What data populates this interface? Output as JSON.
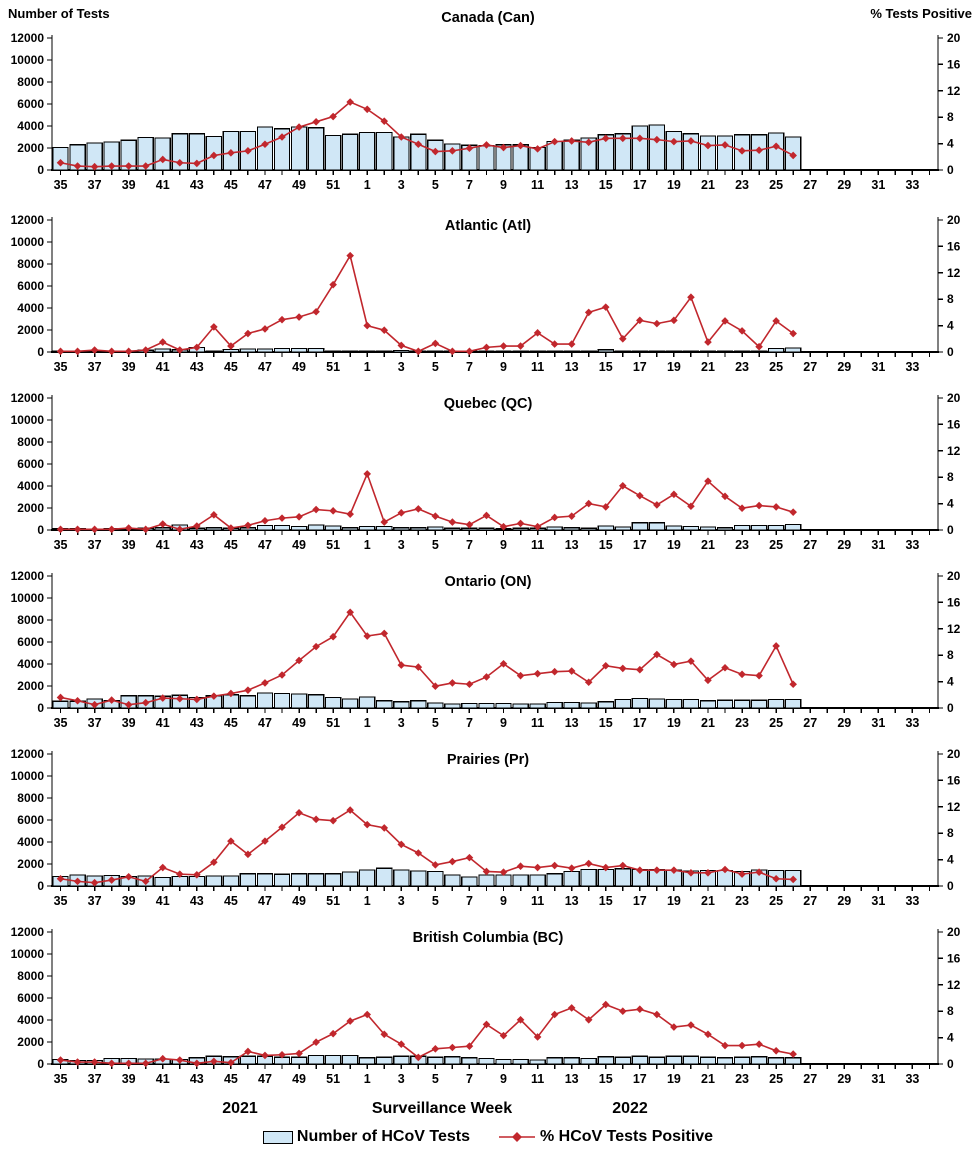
{
  "axes": {
    "left_title": "Number of Tests",
    "right_title": "% Tests Positive",
    "left_ticks": [
      0,
      2000,
      4000,
      6000,
      8000,
      10000,
      12000
    ],
    "right_ticks": [
      0,
      4,
      8,
      12,
      16,
      20
    ],
    "left_max": 12000,
    "right_max": 20
  },
  "x_axis": {
    "title": "Surveillance Week",
    "year_left": "2021",
    "year_right": "2022"
  },
  "legend": {
    "bar_label": "Number of HCoV Tests",
    "line_label": "% HCoV Tests Positive"
  },
  "colors": {
    "bar_fill": "#d0e7f6",
    "bar_stroke": "#000000",
    "line_color": "#c1272d",
    "axis_color": "#000000"
  },
  "chart_data": {
    "type": "bar",
    "note": "Six stacked panels; bars = number of HCoV tests (left axis 0-12000), line = % HCoV tests positive (right axis 0-20). Weeks 35-52 of 2021 then 1-34 of 2022; data plotted through week 26 of 2022.",
    "weeks": [
      "35",
      "36",
      "37",
      "38",
      "39",
      "40",
      "41",
      "42",
      "43",
      "44",
      "45",
      "46",
      "47",
      "48",
      "49",
      "50",
      "51",
      "52",
      "1",
      "2",
      "3",
      "4",
      "5",
      "6",
      "7",
      "8",
      "9",
      "10",
      "11",
      "12",
      "13",
      "14",
      "15",
      "16",
      "17",
      "18",
      "19",
      "20",
      "21",
      "22",
      "23",
      "24",
      "25",
      "26",
      "27",
      "28",
      "29",
      "30",
      "31",
      "32",
      "33",
      "34"
    ],
    "panels": [
      {
        "id": "can",
        "title": "Canada (Can)",
        "bars": [
          2050,
          2300,
          2450,
          2550,
          2700,
          2950,
          2900,
          3300,
          3300,
          3050,
          3500,
          3500,
          3900,
          3750,
          3900,
          3850,
          3150,
          3250,
          3400,
          3400,
          3000,
          3250,
          2700,
          2350,
          2250,
          2200,
          2300,
          2300,
          2050,
          2600,
          2700,
          2900,
          3200,
          3300,
          4000,
          4100,
          3500,
          3300,
          3100,
          3100,
          3200,
          3200,
          3350,
          3000
        ],
        "line": [
          1.1,
          0.6,
          0.5,
          0.6,
          0.6,
          0.6,
          1.6,
          1.1,
          1.0,
          2.2,
          2.6,
          2.9,
          3.9,
          5.0,
          6.5,
          7.3,
          8.1,
          10.3,
          9.2,
          7.4,
          5.0,
          3.9,
          2.8,
          2.9,
          3.3,
          3.8,
          3.4,
          3.7,
          3.2,
          4.3,
          4.4,
          4.2,
          4.8,
          4.8,
          4.8,
          4.6,
          4.3,
          4.4,
          3.7,
          3.8,
          2.9,
          3.0,
          3.6,
          2.2
        ]
      },
      {
        "id": "atl",
        "title": "Atlantic (Atl)",
        "bars": [
          60,
          90,
          110,
          60,
          50,
          160,
          260,
          210,
          420,
          60,
          220,
          260,
          260,
          320,
          320,
          320,
          70,
          60,
          70,
          60,
          130,
          40,
          60,
          40,
          40,
          60,
          60,
          60,
          60,
          80,
          80,
          80,
          210,
          80,
          80,
          80,
          80,
          80,
          80,
          80,
          80,
          60,
          310,
          360
        ],
        "line": [
          0.1,
          0.1,
          0.3,
          0.1,
          0.1,
          0.3,
          1.5,
          0.3,
          0.7,
          3.8,
          0.9,
          2.8,
          3.5,
          4.9,
          5.3,
          6.1,
          10.2,
          14.6,
          4.0,
          3.3,
          1.0,
          0.1,
          1.3,
          0.1,
          0.1,
          0.7,
          0.9,
          0.9,
          2.9,
          1.2,
          1.2,
          6.0,
          6.8,
          2.0,
          4.8,
          4.3,
          4.8,
          8.3,
          1.5,
          4.7,
          3.2,
          0.8,
          4.7,
          2.8
        ]
      },
      {
        "id": "qc",
        "title": "Quebec (QC)",
        "bars": [
          110,
          110,
          100,
          110,
          110,
          160,
          210,
          460,
          160,
          210,
          160,
          210,
          410,
          410,
          310,
          460,
          360,
          210,
          310,
          310,
          210,
          210,
          260,
          160,
          160,
          160,
          110,
          160,
          160,
          260,
          210,
          160,
          360,
          260,
          660,
          660,
          360,
          310,
          260,
          210,
          410,
          410,
          410,
          510
        ],
        "line": [
          0.1,
          0.1,
          0.1,
          0.1,
          0.3,
          0.1,
          0.9,
          0.1,
          0.6,
          2.3,
          0.3,
          0.7,
          1.4,
          1.8,
          2.0,
          3.1,
          2.9,
          2.4,
          8.5,
          1.2,
          2.6,
          3.2,
          2.1,
          1.2,
          0.8,
          2.2,
          0.5,
          1.0,
          0.5,
          1.9,
          2.1,
          4.0,
          3.5,
          6.7,
          5.2,
          3.8,
          5.4,
          3.6,
          7.4,
          5.1,
          3.3,
          3.7,
          3.5,
          2.7
        ]
      },
      {
        "id": "on",
        "title": "Ontario (ON)",
        "bars": [
          620,
          620,
          810,
          660,
          1110,
          1110,
          1060,
          1160,
          960,
          1110,
          1210,
          1110,
          1360,
          1310,
          1260,
          1210,
          960,
          810,
          1010,
          660,
          560,
          660,
          460,
          360,
          410,
          410,
          410,
          360,
          360,
          510,
          510,
          460,
          560,
          760,
          860,
          810,
          760,
          760,
          660,
          710,
          710,
          710,
          760,
          760
        ],
        "line": [
          1.6,
          1.1,
          0.5,
          1.2,
          0.5,
          0.8,
          1.5,
          1.4,
          1.3,
          1.8,
          2.2,
          2.7,
          3.8,
          5.0,
          7.2,
          9.3,
          10.8,
          14.5,
          10.9,
          11.3,
          6.5,
          6.2,
          3.3,
          3.8,
          3.6,
          4.7,
          6.7,
          4.9,
          5.2,
          5.5,
          5.6,
          3.9,
          6.4,
          6.0,
          5.8,
          8.1,
          6.6,
          7.1,
          4.2,
          6.1,
          5.1,
          4.9,
          9.4,
          3.6
        ]
      },
      {
        "id": "pr",
        "title": "Prairies (Pr)",
        "bars": [
          860,
          1010,
          910,
          960,
          860,
          910,
          760,
          860,
          860,
          910,
          910,
          1110,
          1110,
          1060,
          1110,
          1110,
          1110,
          1260,
          1460,
          1610,
          1460,
          1360,
          1310,
          1010,
          810,
          1010,
          1010,
          1010,
          1010,
          1110,
          1310,
          1510,
          1510,
          1560,
          1510,
          1510,
          1460,
          1360,
          1410,
          1410,
          1310,
          1460,
          1410,
          1410
        ],
        "line": [
          1.1,
          0.7,
          0.5,
          0.9,
          1.4,
          0.7,
          2.8,
          1.8,
          1.7,
          3.6,
          6.8,
          4.8,
          6.8,
          8.9,
          11.1,
          10.1,
          9.9,
          11.5,
          9.3,
          8.8,
          6.3,
          5.0,
          3.2,
          3.7,
          4.3,
          2.2,
          2.1,
          3.0,
          2.8,
          3.1,
          2.7,
          3.4,
          2.8,
          3.1,
          2.4,
          2.4,
          2.4,
          2.0,
          2.0,
          2.5,
          1.8,
          2.1,
          1.1,
          1.0
        ]
      },
      {
        "id": "bc",
        "title": "British Columbia (BC)",
        "bars": [
          410,
          310,
          310,
          510,
          510,
          460,
          460,
          410,
          560,
          710,
          660,
          710,
          710,
          610,
          610,
          760,
          760,
          760,
          560,
          610,
          710,
          710,
          610,
          660,
          560,
          510,
          410,
          410,
          360,
          560,
          560,
          510,
          660,
          610,
          710,
          610,
          710,
          710,
          610,
          560,
          610,
          660,
          560,
          560
        ],
        "line": [
          0.6,
          0.3,
          0.3,
          0.1,
          0.1,
          0.1,
          0.8,
          0.6,
          0.1,
          0.4,
          0.2,
          1.9,
          1.3,
          1.4,
          1.6,
          3.3,
          4.6,
          6.5,
          7.5,
          4.5,
          3.0,
          1.0,
          2.3,
          2.5,
          2.7,
          6.0,
          4.3,
          6.7,
          4.1,
          7.5,
          8.5,
          6.7,
          9.0,
          8.0,
          8.3,
          7.5,
          5.6,
          5.9,
          4.5,
          2.8,
          2.8,
          3.0,
          2.0,
          1.5
        ]
      }
    ]
  }
}
